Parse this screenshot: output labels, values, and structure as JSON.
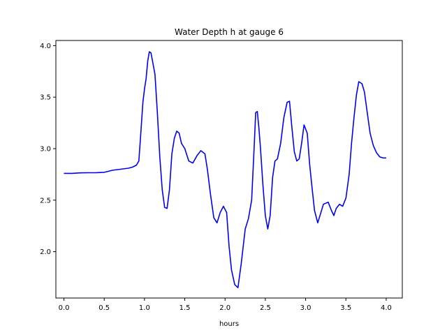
{
  "chart_data": {
    "type": "line",
    "title": "Water Depth h at gauge 6",
    "xlabel": "hours",
    "ylabel": "",
    "xlim": [
      -0.1,
      4.2
    ],
    "ylim": [
      1.55,
      4.05
    ],
    "xticks": [
      0.0,
      0.5,
      1.0,
      1.5,
      2.0,
      2.5,
      3.0,
      3.5,
      4.0
    ],
    "xtick_labels": [
      "0.0",
      "0.5",
      "1.0",
      "1.5",
      "2.0",
      "2.5",
      "3.0",
      "3.5",
      "4.0"
    ],
    "yticks": [
      2.0,
      2.5,
      3.0,
      3.5,
      4.0
    ],
    "ytick_labels": [
      "2.0",
      "2.5",
      "3.0",
      "3.5",
      "4.0"
    ],
    "grid": false,
    "series": [
      {
        "name": "",
        "color": "#0000ff",
        "x": [
          0.0,
          0.1,
          0.2,
          0.3,
          0.4,
          0.5,
          0.55,
          0.6,
          0.7,
          0.8,
          0.85,
          0.9,
          0.93,
          0.95,
          0.98,
          1.0,
          1.02,
          1.04,
          1.06,
          1.08,
          1.1,
          1.13,
          1.16,
          1.19,
          1.22,
          1.25,
          1.28,
          1.31,
          1.34,
          1.37,
          1.4,
          1.43,
          1.46,
          1.5,
          1.55,
          1.6,
          1.65,
          1.7,
          1.75,
          1.78,
          1.82,
          1.86,
          1.9,
          1.94,
          1.98,
          2.02,
          2.05,
          2.08,
          2.12,
          2.16,
          2.2,
          2.25,
          2.29,
          2.33,
          2.36,
          2.38,
          2.4,
          2.42,
          2.44,
          2.47,
          2.5,
          2.53,
          2.56,
          2.59,
          2.62,
          2.65,
          2.69,
          2.73,
          2.77,
          2.8,
          2.83,
          2.86,
          2.89,
          2.92,
          2.95,
          2.98,
          3.02,
          3.05,
          3.08,
          3.11,
          3.15,
          3.19,
          3.22,
          3.25,
          3.28,
          3.32,
          3.35,
          3.38,
          3.42,
          3.46,
          3.5,
          3.54,
          3.57,
          3.6,
          3.63,
          3.66,
          3.7,
          3.73,
          3.76,
          3.8,
          3.84,
          3.88,
          3.92,
          3.96,
          4.0
        ],
        "y": [
          2.76,
          2.76,
          2.765,
          2.766,
          2.767,
          2.77,
          2.78,
          2.79,
          2.8,
          2.81,
          2.82,
          2.84,
          2.88,
          3.1,
          3.45,
          3.58,
          3.68,
          3.85,
          3.94,
          3.93,
          3.85,
          3.72,
          3.35,
          2.92,
          2.6,
          2.43,
          2.42,
          2.6,
          2.95,
          3.1,
          3.17,
          3.15,
          3.05,
          3.0,
          2.88,
          2.86,
          2.93,
          2.98,
          2.95,
          2.8,
          2.55,
          2.33,
          2.28,
          2.38,
          2.44,
          2.38,
          2.05,
          1.82,
          1.68,
          1.65,
          1.88,
          2.22,
          2.32,
          2.5,
          3.0,
          3.35,
          3.36,
          3.2,
          3.0,
          2.65,
          2.35,
          2.22,
          2.35,
          2.72,
          2.88,
          2.9,
          3.05,
          3.3,
          3.45,
          3.46,
          3.2,
          2.97,
          2.88,
          2.9,
          3.05,
          3.23,
          3.15,
          2.85,
          2.62,
          2.4,
          2.28,
          2.38,
          2.46,
          2.47,
          2.48,
          2.4,
          2.35,
          2.42,
          2.46,
          2.44,
          2.52,
          2.75,
          3.05,
          3.3,
          3.52,
          3.65,
          3.63,
          3.55,
          3.38,
          3.15,
          3.03,
          2.96,
          2.92,
          2.91,
          2.91
        ]
      }
    ]
  }
}
